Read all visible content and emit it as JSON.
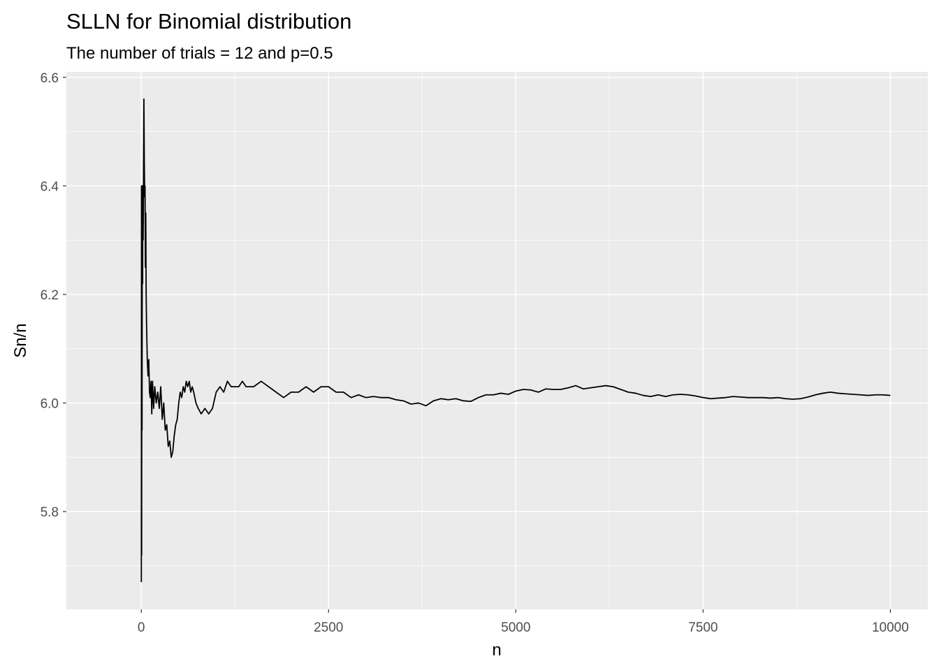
{
  "chart_data": {
    "type": "line",
    "title": "SLLN for Binomial distribution",
    "subtitle": "The number of trials = 12 and p=0.5",
    "xlabel": "n",
    "ylabel": "Sn/n",
    "xlim": [
      -1000,
      10500
    ],
    "ylim": [
      5.62,
      6.61
    ],
    "x_ticks": [
      0,
      2500,
      5000,
      7500,
      10000
    ],
    "x_tick_labels": [
      "0",
      "2500",
      "5000",
      "7500",
      "10000"
    ],
    "y_ticks": [
      5.8,
      6.0,
      6.2,
      6.4,
      6.6
    ],
    "y_tick_labels": [
      "5.8",
      "6.0",
      "6.2",
      "6.4",
      "6.6"
    ],
    "grid": true,
    "legend": "none",
    "colors": {
      "panel_background": "#ebebeb",
      "grid": "#ffffff",
      "line": "#000000"
    },
    "series": [
      {
        "x": [
          1,
          3,
          5,
          8,
          10,
          12,
          15,
          18,
          20,
          25,
          30,
          35,
          40,
          45,
          50,
          55,
          60,
          65,
          70,
          80,
          90,
          100,
          110,
          120,
          130,
          140,
          150,
          165,
          180,
          200,
          220,
          240,
          260,
          280,
          300,
          320,
          340,
          360,
          380,
          400,
          420,
          440,
          460,
          480,
          500,
          520,
          540,
          560,
          580,
          600,
          620,
          640,
          660,
          680,
          700,
          730,
          760,
          800,
          850,
          900,
          950,
          1000,
          1050,
          1100,
          1150,
          1200,
          1250,
          1300,
          1350,
          1400,
          1500,
          1600,
          1700,
          1800,
          1900,
          2000,
          2100,
          2200,
          2300,
          2400,
          2500,
          2600,
          2700,
          2800,
          2900,
          3000,
          3100,
          3200,
          3300,
          3400,
          3500,
          3600,
          3700,
          3800,
          3900,
          4000,
          4100,
          4200,
          4300,
          4400,
          4500,
          4600,
          4700,
          4800,
          4900,
          5000,
          5100,
          5200,
          5300,
          5400,
          5500,
          5600,
          5700,
          5800,
          5900,
          6000,
          6100,
          6200,
          6300,
          6400,
          6500,
          6600,
          6700,
          6800,
          6900,
          7000,
          7100,
          7200,
          7300,
          7400,
          7500,
          7600,
          7700,
          7800,
          7900,
          8000,
          8100,
          8200,
          8300,
          8400,
          8500,
          8600,
          8700,
          8800,
          8900,
          9000,
          9100,
          9200,
          9300,
          9400,
          9500,
          9600,
          9700,
          9800,
          9900,
          10000
        ],
        "y": [
          5.67,
          6.4,
          5.72,
          6.33,
          5.95,
          6.25,
          6.4,
          6.22,
          6.35,
          6.3,
          6.4,
          6.56,
          6.45,
          6.38,
          6.4,
          6.25,
          6.35,
          6.2,
          6.15,
          6.08,
          6.05,
          6.08,
          6.02,
          6.01,
          6.04,
          5.98,
          6.04,
          5.99,
          6.03,
          6.0,
          6.02,
          5.99,
          6.03,
          5.97,
          6.0,
          5.95,
          5.96,
          5.92,
          5.93,
          5.9,
          5.91,
          5.94,
          5.96,
          5.97,
          6.0,
          6.02,
          6.01,
          6.03,
          6.02,
          6.04,
          6.03,
          6.04,
          6.02,
          6.03,
          6.02,
          6.0,
          5.99,
          5.98,
          5.99,
          5.98,
          5.99,
          6.02,
          6.03,
          6.02,
          6.04,
          6.03,
          6.03,
          6.03,
          6.04,
          6.03,
          6.03,
          6.04,
          6.03,
          6.02,
          6.01,
          6.02,
          6.02,
          6.03,
          6.02,
          6.03,
          6.03,
          6.02,
          6.02,
          6.01,
          6.015,
          6.01,
          6.012,
          6.01,
          6.01,
          6.006,
          6.004,
          5.998,
          6.0,
          5.995,
          6.004,
          6.008,
          6.006,
          6.008,
          6.004,
          6.003,
          6.01,
          6.015,
          6.015,
          6.018,
          6.016,
          6.022,
          6.025,
          6.024,
          6.02,
          6.026,
          6.025,
          6.025,
          6.028,
          6.032,
          6.026,
          6.028,
          6.03,
          6.032,
          6.03,
          6.025,
          6.02,
          6.018,
          6.014,
          6.012,
          6.015,
          6.012,
          6.015,
          6.016,
          6.015,
          6.013,
          6.01,
          6.008,
          6.009,
          6.01,
          6.012,
          6.011,
          6.01,
          6.01,
          6.01,
          6.009,
          6.01,
          6.008,
          6.007,
          6.008,
          6.011,
          6.015,
          6.018,
          6.02,
          6.018,
          6.017,
          6.016,
          6.015,
          6.014,
          6.015,
          6.015,
          6.014
        ]
      }
    ]
  }
}
